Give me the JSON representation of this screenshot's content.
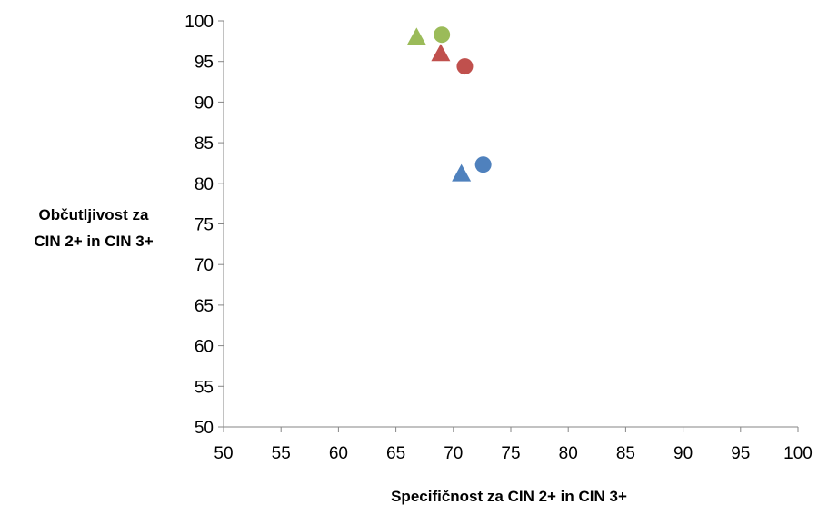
{
  "chart_data": {
    "type": "scatter",
    "title": "",
    "xlabel": "Specifičnost za CIN 2+ in CIN 3+",
    "ylabel_lines": [
      "Občutljivost za",
      "CIN 2+ in CIN 3+"
    ],
    "xlim": [
      50,
      100
    ],
    "ylim": [
      50,
      100
    ],
    "x_ticks": [
      50,
      55,
      60,
      65,
      70,
      75,
      80,
      85,
      90,
      95,
      100
    ],
    "y_ticks": [
      50,
      55,
      60,
      65,
      70,
      75,
      80,
      85,
      90,
      95,
      100
    ],
    "grid": false,
    "legend": "none",
    "series": [
      {
        "color": "#9bbb59",
        "points": [
          {
            "x": 66.8,
            "y": 98.0,
            "marker": "triangle"
          },
          {
            "x": 69.0,
            "y": 98.3,
            "marker": "circle"
          }
        ]
      },
      {
        "color": "#c0504d",
        "points": [
          {
            "x": 68.9,
            "y": 96.0,
            "marker": "triangle"
          },
          {
            "x": 71.0,
            "y": 94.4,
            "marker": "circle"
          }
        ]
      },
      {
        "color": "#4f81bd",
        "points": [
          {
            "x": 70.7,
            "y": 81.2,
            "marker": "triangle"
          },
          {
            "x": 72.6,
            "y": 82.3,
            "marker": "circle"
          }
        ]
      }
    ]
  }
}
